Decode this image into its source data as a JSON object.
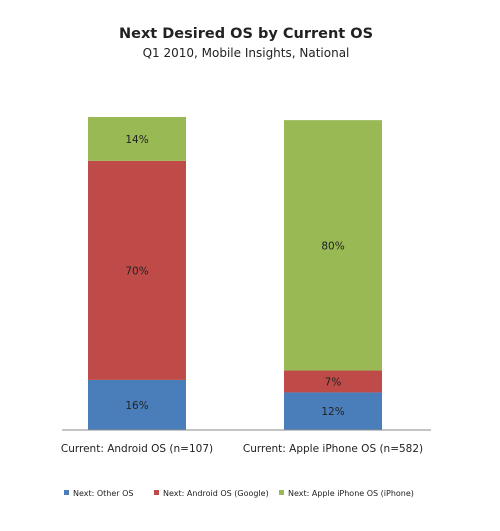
{
  "chart_data": {
    "type": "bar",
    "stacked": true,
    "title": "Next Desired OS by Current OS",
    "subtitle": "Q1 2010, Mobile Insights, National",
    "categories": [
      "Current: Android OS (n=107)",
      "Current: Apple iPhone OS (n=582)"
    ],
    "series": [
      {
        "name": "Next: Other OS",
        "values": [
          16,
          12
        ],
        "color": "#4a7ebb"
      },
      {
        "name": "Next: Android OS (Google)",
        "values": [
          70,
          7
        ],
        "color": "#be4b48"
      },
      {
        "name": "Next: Apple iPhone OS (iPhone)",
        "values": [
          14,
          80
        ],
        "color": "#98b954"
      }
    ],
    "ylim": [
      0,
      100
    ],
    "value_suffix": "%",
    "grid": false,
    "legend_position": "bottom"
  }
}
